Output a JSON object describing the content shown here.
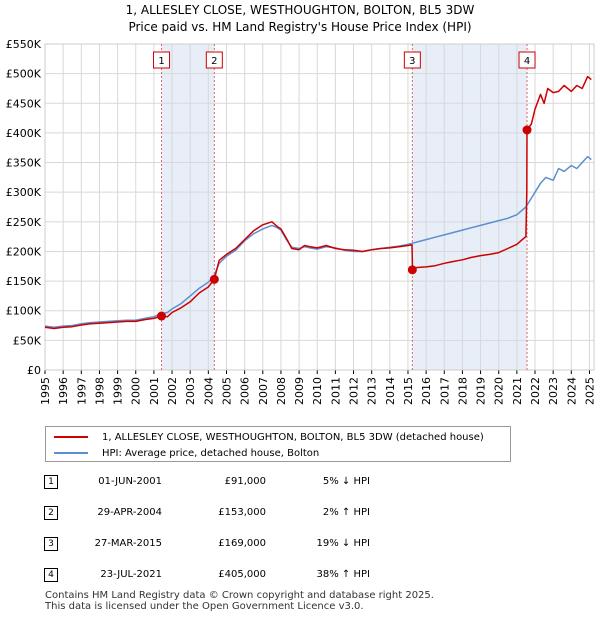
{
  "chart_data": {
    "type": "line",
    "title": "1, ALLESLEY CLOSE, WESTHOUGHTON, BOLTON, BL5 3DW",
    "subtitle": "Price paid vs. HM Land Registry's House Price Index (HPI)",
    "xlim": [
      1995,
      2025.25
    ],
    "ylim": [
      0,
      550000
    ],
    "x_ticks": [
      "1995",
      "1996",
      "1997",
      "1998",
      "1999",
      "2000",
      "2001",
      "2002",
      "2003",
      "2004",
      "2005",
      "2006",
      "2007",
      "2008",
      "2009",
      "2010",
      "2011",
      "2012",
      "2013",
      "2014",
      "2015",
      "2016",
      "2017",
      "2018",
      "2019",
      "2020",
      "2021",
      "2022",
      "2023",
      "2024",
      "2025"
    ],
    "y_ticks": [
      {
        "value": 0,
        "label": "£0"
      },
      {
        "value": 50000,
        "label": "£50K"
      },
      {
        "value": 100000,
        "label": "£100K"
      },
      {
        "value": 150000,
        "label": "£150K"
      },
      {
        "value": 200000,
        "label": "£200K"
      },
      {
        "value": 250000,
        "label": "£250K"
      },
      {
        "value": 300000,
        "label": "£300K"
      },
      {
        "value": 350000,
        "label": "£350K"
      },
      {
        "value": 400000,
        "label": "£400K"
      },
      {
        "value": 450000,
        "label": "£450K"
      },
      {
        "value": 500000,
        "label": "£500K"
      },
      {
        "value": 550000,
        "label": "£550K"
      }
    ],
    "grid": true,
    "shaded_periods": [
      [
        2001.42,
        2004.33
      ],
      [
        2015.24,
        2021.56
      ]
    ],
    "series": [
      {
        "name": "1, ALLESLEY CLOSE, WESTHOUGHTON, BOLTON, BL5 3DW (detached house)",
        "color": "#cc0000",
        "x": [
          1995,
          1995.5,
          1996,
          1996.5,
          1997,
          1997.5,
          1998,
          1998.5,
          1999,
          1999.5,
          2000,
          2000.5,
          2001,
          2001.42,
          2001.75,
          2002,
          2002.5,
          2003,
          2003.5,
          2004,
          2004.33,
          2004.6,
          2005,
          2005.5,
          2006,
          2006.5,
          2007,
          2007.5,
          2007.8,
          2008,
          2008.3,
          2008.6,
          2009,
          2009.3,
          2009.6,
          2010,
          2010.5,
          2011,
          2011.5,
          2012,
          2012.5,
          2013,
          2013.5,
          2014,
          2014.5,
          2015,
          2015.22,
          2015.25,
          2015.5,
          2016,
          2016.5,
          2017,
          2017.5,
          2018,
          2018.5,
          2019,
          2019.5,
          2020,
          2020.5,
          2021,
          2021.3,
          2021.5,
          2021.55,
          2021.56,
          2021.8,
          2022,
          2022.3,
          2022.5,
          2022.7,
          2023,
          2023.3,
          2023.6,
          2024,
          2024.3,
          2024.6,
          2024.9,
          2025.1
        ],
        "y": [
          72000,
          70000,
          72000,
          73000,
          76000,
          78000,
          79000,
          80000,
          81000,
          82000,
          82000,
          85000,
          87000,
          91000,
          90000,
          97000,
          105000,
          115000,
          130000,
          140000,
          153000,
          185000,
          195000,
          205000,
          220000,
          235000,
          245000,
          250000,
          242000,
          238000,
          222000,
          205000,
          203000,
          210000,
          208000,
          206000,
          210000,
          205000,
          203000,
          202000,
          200000,
          203000,
          205000,
          206000,
          208000,
          210000,
          211000,
          169000,
          173000,
          174000,
          176000,
          180000,
          183000,
          186000,
          190000,
          193000,
          195000,
          198000,
          205000,
          212000,
          220000,
          225000,
          300000,
          405000,
          415000,
          440000,
          465000,
          450000,
          475000,
          468000,
          470000,
          480000,
          470000,
          480000,
          475000,
          495000,
          490000
        ]
      },
      {
        "name": "HPI: Average price, detached house, Bolton",
        "color": "#5b8fd0",
        "x": [
          1995,
          1995.5,
          1996,
          1996.5,
          1997,
          1997.5,
          1998,
          1998.5,
          1999,
          1999.5,
          2000,
          2000.5,
          2001,
          2001.42,
          2001.75,
          2002,
          2002.5,
          2003,
          2003.5,
          2004,
          2004.33,
          2004.6,
          2005,
          2005.5,
          2006,
          2006.5,
          2007,
          2007.5,
          2007.8,
          2008,
          2008.3,
          2008.6,
          2009,
          2009.3,
          2009.6,
          2010,
          2010.5,
          2011,
          2011.5,
          2012,
          2012.5,
          2013,
          2013.5,
          2014,
          2014.5,
          2015,
          2015.5,
          2016,
          2016.5,
          2017,
          2017.5,
          2018,
          2018.5,
          2019,
          2019.5,
          2020,
          2020.5,
          2021,
          2021.5,
          2021.8,
          2022,
          2022.3,
          2022.6,
          2023,
          2023.3,
          2023.6,
          2024,
          2024.3,
          2024.6,
          2024.9,
          2025.1
        ],
        "y": [
          74000,
          72000,
          74000,
          75000,
          78000,
          80000,
          81000,
          82000,
          83000,
          84000,
          84000,
          87000,
          90000,
          95000,
          97000,
          103000,
          112000,
          125000,
          138000,
          148000,
          160000,
          180000,
          192000,
          202000,
          218000,
          230000,
          238000,
          244000,
          240000,
          236000,
          220000,
          207000,
          205000,
          208000,
          206000,
          204000,
          208000,
          206000,
          202000,
          200000,
          200000,
          203000,
          205000,
          207000,
          209000,
          212000,
          216000,
          220000,
          224000,
          228000,
          232000,
          236000,
          240000,
          244000,
          248000,
          252000,
          256000,
          262000,
          275000,
          290000,
          300000,
          315000,
          325000,
          320000,
          340000,
          335000,
          345000,
          340000,
          350000,
          360000,
          355000
        ]
      }
    ],
    "markers": [
      {
        "label": "1",
        "x": 2001.42,
        "y": 91000
      },
      {
        "label": "2",
        "x": 2004.33,
        "y": 153000
      },
      {
        "label": "3",
        "x": 2015.24,
        "y": 169000
      },
      {
        "label": "4",
        "x": 2021.56,
        "y": 405000
      }
    ]
  },
  "legend": {
    "items": [
      {
        "label": "1, ALLESLEY CLOSE, WESTHOUGHTON, BOLTON, BL5 3DW (detached house)",
        "color": "#cc0000"
      },
      {
        "label": "HPI: Average price, detached house, Bolton",
        "color": "#5b8fd0"
      }
    ]
  },
  "transactions": [
    {
      "num": "1",
      "date": "01-JUN-2001",
      "price": "£91,000",
      "diff": "5% ↓ HPI"
    },
    {
      "num": "2",
      "date": "29-APR-2004",
      "price": "£153,000",
      "diff": "2% ↑ HPI"
    },
    {
      "num": "3",
      "date": "27-MAR-2015",
      "price": "£169,000",
      "diff": "19% ↓ HPI"
    },
    {
      "num": "4",
      "date": "23-JUL-2021",
      "price": "£405,000",
      "diff": "38% ↑ HPI"
    }
  ],
  "footer": {
    "line1": "Contains HM Land Registry data © Crown copyright and database right 2025.",
    "line2": "This data is licensed under the Open Government Licence v3.0."
  }
}
